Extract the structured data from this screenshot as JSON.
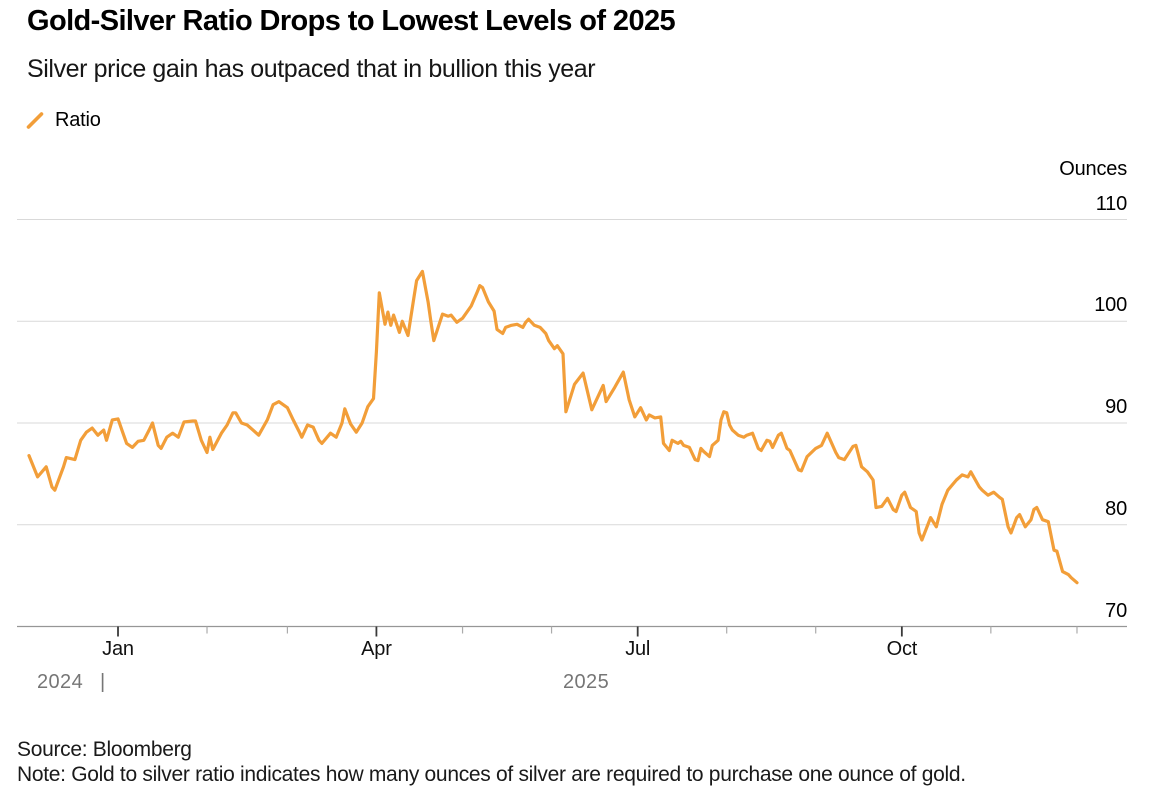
{
  "header": {
    "title": "Gold-Silver Ratio Drops to Lowest Levels of 2025",
    "subtitle": "Silver price gain has outpaced that in bullion this year"
  },
  "legend": {
    "items": [
      {
        "label": "Ratio",
        "marker": "slash-icon",
        "color": "#F29E39"
      }
    ]
  },
  "footer": {
    "source": "Source: Bloomberg",
    "note": "Note: Gold to silver ratio indicates how many ounces of silver are required to purchase one ounce of gold."
  },
  "colors": {
    "line": "#F29E39",
    "gridline": "#D9D9D9",
    "axis": "#969696",
    "tick_major": "#3A3A3A",
    "tick_minor": "#ABABAB",
    "year_text": "#767676"
  },
  "chart_data": {
    "type": "line",
    "title": "Gold-Silver Ratio Drops to Lowest Levels of 2025",
    "subtitle": "Silver price gain has outpaced that in bullion this year",
    "unit_label": "Ounces",
    "legend_position": "top-left",
    "grid": true,
    "y_axis": {
      "label": "Ounces",
      "ticks": [
        110,
        100,
        90,
        80,
        70
      ],
      "range": [
        70,
        112
      ]
    },
    "x_axis": {
      "start_date": "2024-12-01",
      "end_date": "2025-12-01",
      "major_tick_labels": [
        "Jan",
        "Apr",
        "Jul",
        "Oct"
      ],
      "major_tick_days": [
        31,
        121,
        212,
        304
      ],
      "minor_tick_days": [
        62,
        90,
        151,
        182,
        243,
        274,
        335,
        365
      ],
      "year_labels": [
        "2024",
        "2025"
      ],
      "year_divider": "|"
    },
    "series": [
      {
        "name": "Ratio",
        "color": "#F29E39",
        "x_unit": "days_since_2024-12-01",
        "points": [
          [
            0,
            86.8
          ],
          [
            3,
            84.7
          ],
          [
            6,
            85.7
          ],
          [
            8,
            83.7
          ],
          [
            9,
            83.4
          ],
          [
            12,
            85.7
          ],
          [
            13,
            86.6
          ],
          [
            16,
            86.4
          ],
          [
            18,
            88.3
          ],
          [
            20,
            89.1
          ],
          [
            22,
            89.5
          ],
          [
            24,
            88.8
          ],
          [
            26,
            89.3
          ],
          [
            27,
            88.3
          ],
          [
            29,
            90.3
          ],
          [
            31,
            90.4
          ],
          [
            33,
            88.8
          ],
          [
            34,
            88.0
          ],
          [
            36,
            87.6
          ],
          [
            38,
            88.2
          ],
          [
            40,
            88.3
          ],
          [
            42,
            89.4
          ],
          [
            43,
            90.0
          ],
          [
            45,
            87.8
          ],
          [
            46,
            87.5
          ],
          [
            48,
            88.6
          ],
          [
            50,
            89.0
          ],
          [
            52,
            88.6
          ],
          [
            54,
            90.1
          ],
          [
            57,
            90.2
          ],
          [
            58,
            90.2
          ],
          [
            60,
            88.3
          ],
          [
            62,
            87.1
          ],
          [
            63,
            88.6
          ],
          [
            64,
            87.4
          ],
          [
            67,
            89.0
          ],
          [
            69,
            89.8
          ],
          [
            71,
            91.0
          ],
          [
            72,
            91.0
          ],
          [
            74,
            90.0
          ],
          [
            76,
            89.8
          ],
          [
            78,
            89.3
          ],
          [
            80,
            88.8
          ],
          [
            83,
            90.3
          ],
          [
            85,
            91.8
          ],
          [
            87,
            92.1
          ],
          [
            90,
            91.5
          ],
          [
            92,
            90.3
          ],
          [
            94,
            89.2
          ],
          [
            95,
            88.6
          ],
          [
            97,
            89.8
          ],
          [
            99,
            89.6
          ],
          [
            101,
            88.3
          ],
          [
            102,
            88.0
          ],
          [
            105,
            89.0
          ],
          [
            107,
            88.6
          ],
          [
            109,
            90.0
          ],
          [
            110,
            91.4
          ],
          [
            112,
            89.9
          ],
          [
            114,
            89.1
          ],
          [
            116,
            90.0
          ],
          [
            118,
            91.6
          ],
          [
            120,
            92.4
          ],
          [
            121,
            97.0
          ],
          [
            122,
            102.8
          ],
          [
            124,
            99.7
          ],
          [
            125,
            100.9
          ],
          [
            126,
            99.6
          ],
          [
            127,
            100.6
          ],
          [
            129,
            98.9
          ],
          [
            130,
            100.0
          ],
          [
            132,
            98.6
          ],
          [
            134,
            102.2
          ],
          [
            135,
            104.0
          ],
          [
            137,
            104.9
          ],
          [
            139,
            101.9
          ],
          [
            140,
            99.9
          ],
          [
            141,
            98.1
          ],
          [
            144,
            100.7
          ],
          [
            146,
            100.5
          ],
          [
            147,
            100.6
          ],
          [
            149,
            99.9
          ],
          [
            151,
            100.3
          ],
          [
            154,
            101.5
          ],
          [
            156,
            102.8
          ],
          [
            157,
            103.5
          ],
          [
            158,
            103.3
          ],
          [
            160,
            101.9
          ],
          [
            162,
            101.0
          ],
          [
            163,
            99.2
          ],
          [
            165,
            98.8
          ],
          [
            166,
            99.4
          ],
          [
            168,
            99.6
          ],
          [
            170,
            99.7
          ],
          [
            172,
            99.4
          ],
          [
            173,
            99.9
          ],
          [
            174,
            100.2
          ],
          [
            176,
            99.6
          ],
          [
            178,
            99.4
          ],
          [
            180,
            98.8
          ],
          [
            181,
            98.1
          ],
          [
            183,
            97.3
          ],
          [
            184,
            97.6
          ],
          [
            186,
            96.8
          ],
          [
            187,
            91.1
          ],
          [
            190,
            93.8
          ],
          [
            193,
            94.9
          ],
          [
            196,
            91.3
          ],
          [
            200,
            93.7
          ],
          [
            201,
            92.1
          ],
          [
            204,
            93.5
          ],
          [
            207,
            95.0
          ],
          [
            209,
            92.3
          ],
          [
            211,
            90.6
          ],
          [
            213,
            91.5
          ],
          [
            215,
            90.3
          ],
          [
            216,
            90.8
          ],
          [
            218,
            90.5
          ],
          [
            220,
            90.6
          ],
          [
            221,
            88.0
          ],
          [
            223,
            87.3
          ],
          [
            224,
            88.3
          ],
          [
            226,
            88.0
          ],
          [
            227,
            88.2
          ],
          [
            228,
            87.8
          ],
          [
            230,
            87.6
          ],
          [
            232,
            86.4
          ],
          [
            233,
            86.3
          ],
          [
            234,
            87.5
          ],
          [
            235,
            87.2
          ],
          [
            237,
            86.7
          ],
          [
            238,
            87.8
          ],
          [
            240,
            88.3
          ],
          [
            241,
            90.3
          ],
          [
            242,
            91.1
          ],
          [
            243,
            91.0
          ],
          [
            244,
            89.8
          ],
          [
            245,
            89.3
          ],
          [
            247,
            88.8
          ],
          [
            249,
            88.6
          ],
          [
            250,
            88.8
          ],
          [
            252,
            89.0
          ],
          [
            254,
            87.5
          ],
          [
            255,
            87.3
          ],
          [
            257,
            88.3
          ],
          [
            258,
            88.2
          ],
          [
            259,
            87.6
          ],
          [
            261,
            88.8
          ],
          [
            262,
            89.0
          ],
          [
            264,
            87.5
          ],
          [
            265,
            87.3
          ],
          [
            268,
            85.4
          ],
          [
            269,
            85.3
          ],
          [
            271,
            86.7
          ],
          [
            274,
            87.5
          ],
          [
            276,
            87.8
          ],
          [
            278,
            89.0
          ],
          [
            281,
            87.1
          ],
          [
            282,
            86.6
          ],
          [
            284,
            86.4
          ],
          [
            287,
            87.7
          ],
          [
            288,
            87.8
          ],
          [
            290,
            85.7
          ],
          [
            292,
            85.2
          ],
          [
            294,
            84.4
          ],
          [
            295,
            81.7
          ],
          [
            297,
            81.8
          ],
          [
            299,
            82.6
          ],
          [
            301,
            81.5
          ],
          [
            302,
            81.3
          ],
          [
            304,
            82.9
          ],
          [
            305,
            83.2
          ],
          [
            307,
            81.7
          ],
          [
            309,
            81.3
          ],
          [
            310,
            79.2
          ],
          [
            311,
            78.5
          ],
          [
            314,
            80.7
          ],
          [
            316,
            79.8
          ],
          [
            318,
            82.0
          ],
          [
            320,
            83.4
          ],
          [
            323,
            84.4
          ],
          [
            325,
            84.9
          ],
          [
            327,
            84.7
          ],
          [
            328,
            85.2
          ],
          [
            331,
            83.7
          ],
          [
            332,
            83.4
          ],
          [
            334,
            82.9
          ],
          [
            336,
            83.2
          ],
          [
            338,
            82.7
          ],
          [
            339,
            82.5
          ],
          [
            341,
            79.8
          ],
          [
            342,
            79.2
          ],
          [
            344,
            80.7
          ],
          [
            345,
            81.0
          ],
          [
            347,
            79.8
          ],
          [
            349,
            80.5
          ],
          [
            350,
            81.5
          ],
          [
            351,
            81.7
          ],
          [
            353,
            80.5
          ],
          [
            355,
            80.3
          ],
          [
            357,
            77.5
          ],
          [
            358,
            77.4
          ],
          [
            360,
            75.4
          ],
          [
            362,
            75.1
          ],
          [
            363,
            74.8
          ],
          [
            365,
            74.3
          ]
        ]
      }
    ]
  }
}
